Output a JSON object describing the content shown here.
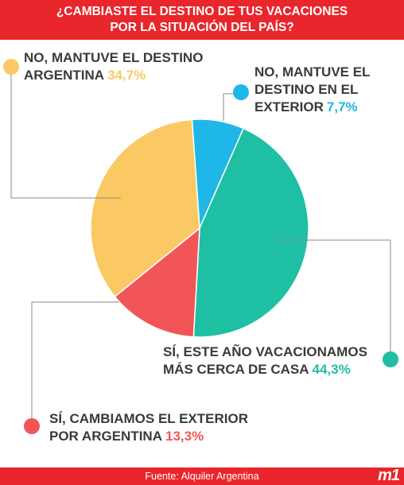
{
  "header": {
    "line1": "¿CAMBIASTE EL DESTINO DE TUS VACACIONES",
    "line2": "POR LA SITUACIÓN DEL PAÍS?"
  },
  "footer": {
    "source": "Fuente: Alquiler Argentina",
    "brand": "m1"
  },
  "colors": {
    "header": "#e8262b",
    "blue": "#1fb7e8",
    "teal": "#1fbfa3",
    "red": "#f25558",
    "yellow": "#fbc964"
  },
  "chart_data": {
    "type": "pie",
    "title": "¿CAMBIASTE EL DESTINO DE TUS VACACIONES POR LA SITUACIÓN DEL PAÍS?",
    "slices": [
      {
        "label": "NO, MANTUVE EL DESTINO EN EL EXTERIOR",
        "value": 7.7,
        "value_text": "7,7%",
        "color": "#1fb7e8"
      },
      {
        "label": "SÍ, ESTE AÑO VACACIONAMOS MÁS CERCA DE CASA",
        "value": 44.3,
        "value_text": "44,3%",
        "color": "#1fbfa3"
      },
      {
        "label": "SÍ, CAMBIAMOS EL EXTERIOR POR ARGENTINA",
        "value": 13.3,
        "value_text": "13,3%",
        "color": "#f25558"
      },
      {
        "label": "NO, MANTUVE EL DESTINO ARGENTINA",
        "value": 34.7,
        "value_text": "34,7%",
        "color": "#fbc964"
      }
    ],
    "labels": {
      "blue": {
        "line1": "NO, MANTUVE EL",
        "line2": "DESTINO EN EL",
        "line3": "EXTERIOR"
      },
      "teal": {
        "line1": "SÍ, ESTE AÑO VACACIONAMOS",
        "line2": "MÁS CERCA DE CASA"
      },
      "red": {
        "line1": "SÍ, CAMBIAMOS EL EXTERIOR",
        "line2": "POR ARGENTINA"
      },
      "yellow": {
        "line1": "NO, MANTUVE EL DESTINO",
        "line2": "ARGENTINA"
      }
    }
  }
}
